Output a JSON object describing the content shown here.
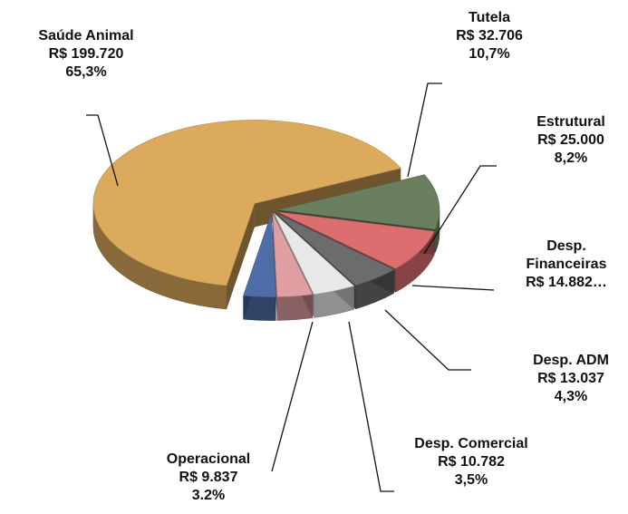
{
  "chart_data": {
    "type": "pie3d",
    "categories": [
      "Saúde Animal",
      "Tutela",
      "Estrutural",
      "Desp. Financeiras",
      "Desp. ADM",
      "Desp. Comercial",
      "Operacional"
    ],
    "values": [
      199720,
      32706,
      25000,
      14882,
      13037,
      10782,
      9837
    ],
    "value_labels": [
      "R$ 199.720",
      "R$ 32.706",
      "R$ 25.000",
      "R$ 14.882…",
      "R$ 13.037",
      "R$ 10.782",
      "R$ 9.837"
    ],
    "percentages": [
      65.3,
      10.7,
      8.2,
      null,
      4.3,
      3.5,
      3.2
    ],
    "percentage_labels": [
      "65,3%",
      "10,7%",
      "8,2%",
      null,
      "4,3%",
      "3,5%",
      "3.2%"
    ],
    "colors": [
      "#dcaa5c",
      "#6a7f5e",
      "#dc6e70",
      "#6c6c6c",
      "#e6e8ea",
      "#de9ea2",
      "#4f6ea8"
    ]
  }
}
